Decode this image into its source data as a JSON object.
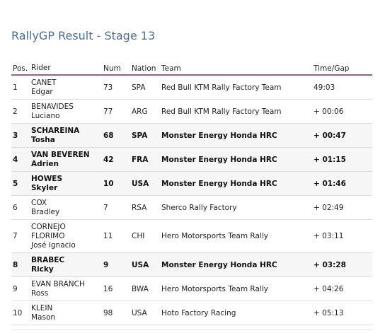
{
  "page": {
    "title": "RallyGP Result - Stage 13"
  },
  "table": {
    "headers": {
      "pos": "Pos.",
      "rider": "Rider",
      "num": "Num",
      "nation": "Nation",
      "team": "Team",
      "time": "Time/Gap"
    },
    "rows": [
      {
        "pos": "1",
        "rider_lines": [
          "CANET",
          "Edgar"
        ],
        "num": "73",
        "nation": "SPA",
        "team": "Red Bull KTM Rally Factory Team",
        "time": "49:03",
        "highlight": false
      },
      {
        "pos": "2",
        "rider_lines": [
          "BENAVIDES",
          "Luciano"
        ],
        "num": "77",
        "nation": "ARG",
        "team": "Red Bull KTM Rally Factory Team",
        "time": "+ 00:06",
        "highlight": false
      },
      {
        "pos": "3",
        "rider_lines": [
          "SCHAREINA",
          "Tosha"
        ],
        "num": "68",
        "nation": "SPA",
        "team": "Monster Energy Honda HRC",
        "time": "+ 00:47",
        "highlight": true
      },
      {
        "pos": "4",
        "rider_lines": [
          "VAN BEVEREN",
          "Adrien"
        ],
        "num": "42",
        "nation": "FRA",
        "team": "Monster Energy Honda HRC",
        "time": "+ 01:15",
        "highlight": true
      },
      {
        "pos": "5",
        "rider_lines": [
          "HOWES",
          "Skyler"
        ],
        "num": "10",
        "nation": "USA",
        "team": "Monster Energy Honda HRC",
        "time": "+ 01:46",
        "highlight": true
      },
      {
        "pos": "6",
        "rider_lines": [
          "COX",
          "Bradley"
        ],
        "num": "7",
        "nation": "RSA",
        "team": "Sherco Rally Factory",
        "time": "+ 02:49",
        "highlight": false
      },
      {
        "pos": "7",
        "rider_lines": [
          "CORNEJO",
          "FLORIMO",
          "José Ignacio"
        ],
        "num": "11",
        "nation": "CHI",
        "team": "Hero Motorsports Team Rally",
        "time": "+ 03:11",
        "highlight": false
      },
      {
        "pos": "8",
        "rider_lines": [
          "BRABEC",
          "Ricky"
        ],
        "num": "9",
        "nation": "USA",
        "team": "Monster Energy Honda HRC",
        "time": "+ 03:28",
        "highlight": true
      },
      {
        "pos": "9",
        "rider_lines": [
          "EVAN BRANCH",
          "Ross"
        ],
        "num": "16",
        "nation": "BWA",
        "team": "Hero Motorsports Team Rally",
        "time": "+ 04:26",
        "highlight": false
      },
      {
        "pos": "10",
        "rider_lines": [
          "KLEIN",
          "Mason"
        ],
        "num": "98",
        "nation": "USA",
        "team": "Hoto Factory Racing",
        "time": "+ 05:13",
        "highlight": false
      }
    ]
  },
  "colors": {
    "title": "#4a6e96",
    "header_rule": "#b5577a",
    "row_rule": "#dddddd",
    "highlight_row": "#f6f6f6"
  }
}
